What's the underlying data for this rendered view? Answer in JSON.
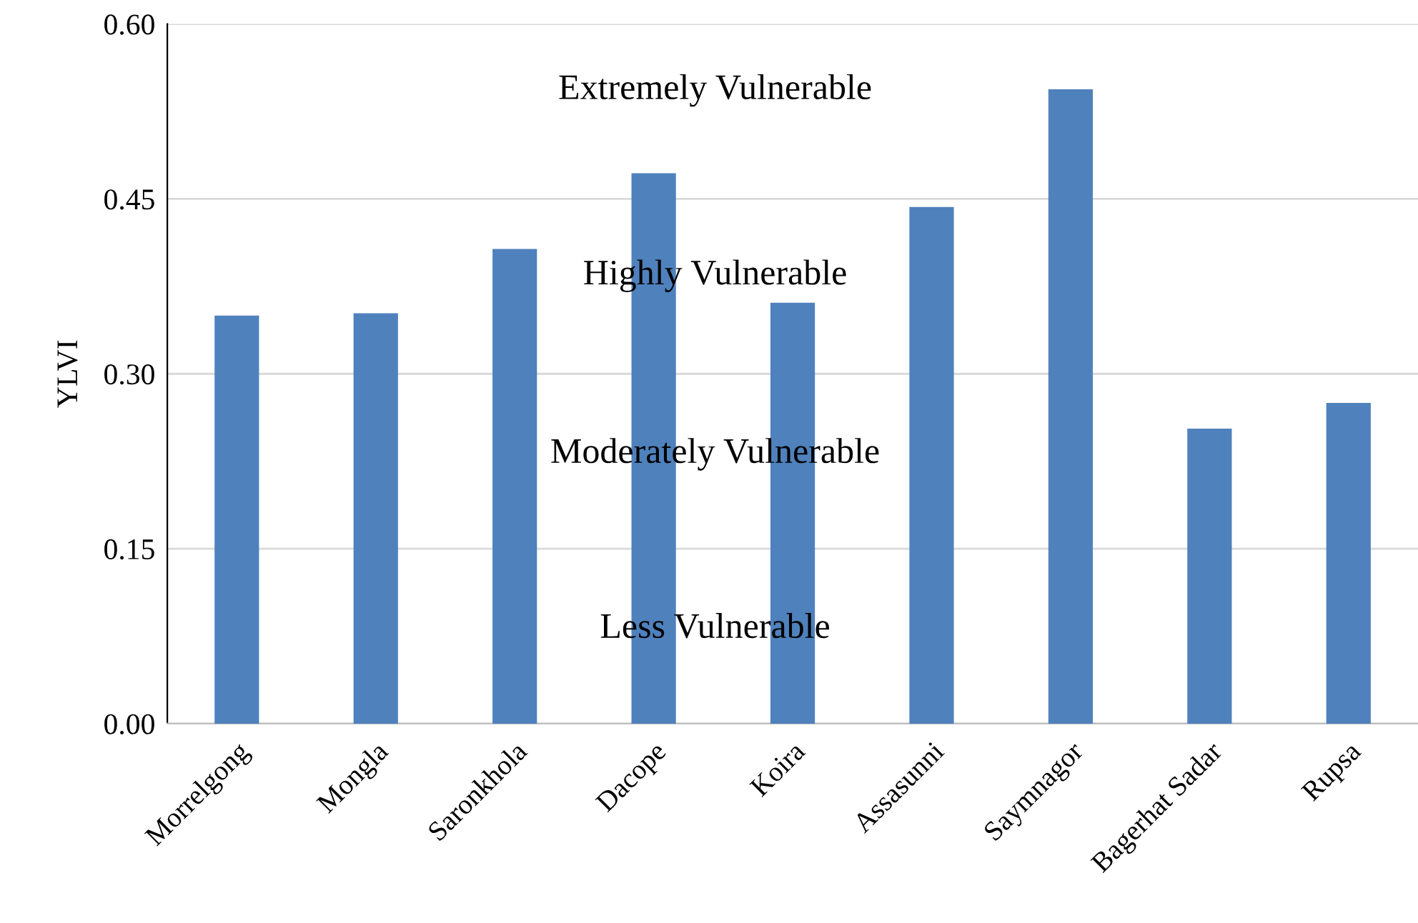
{
  "chart_data": {
    "type": "bar",
    "ylabel": "YLVI",
    "categories": [
      "Morrelgong",
      "Mongla",
      "Saronkhola",
      "Dacope",
      "Koira",
      "Assasunni",
      "Saymnagor",
      "Bagerhat Sadar",
      "Rupsa"
    ],
    "values": [
      0.35,
      0.352,
      0.407,
      0.472,
      0.361,
      0.443,
      0.544,
      0.253,
      0.275
    ],
    "color": "#4f81bd",
    "ylim": [
      0,
      0.6
    ],
    "yticks": [
      {
        "value": 0,
        "label": "0.00"
      },
      {
        "value": 0.15,
        "label": "0.15"
      },
      {
        "value": 0.3,
        "label": "0.30"
      },
      {
        "value": 0.45,
        "label": "0.45"
      },
      {
        "value": 0.6,
        "label": "0.60"
      }
    ],
    "grid": "y",
    "annotations": [
      "Extremely Vulnerable",
      "Highly Vulnerable",
      "Moderately Vulnerable",
      "Less Vulnerable"
    ]
  }
}
